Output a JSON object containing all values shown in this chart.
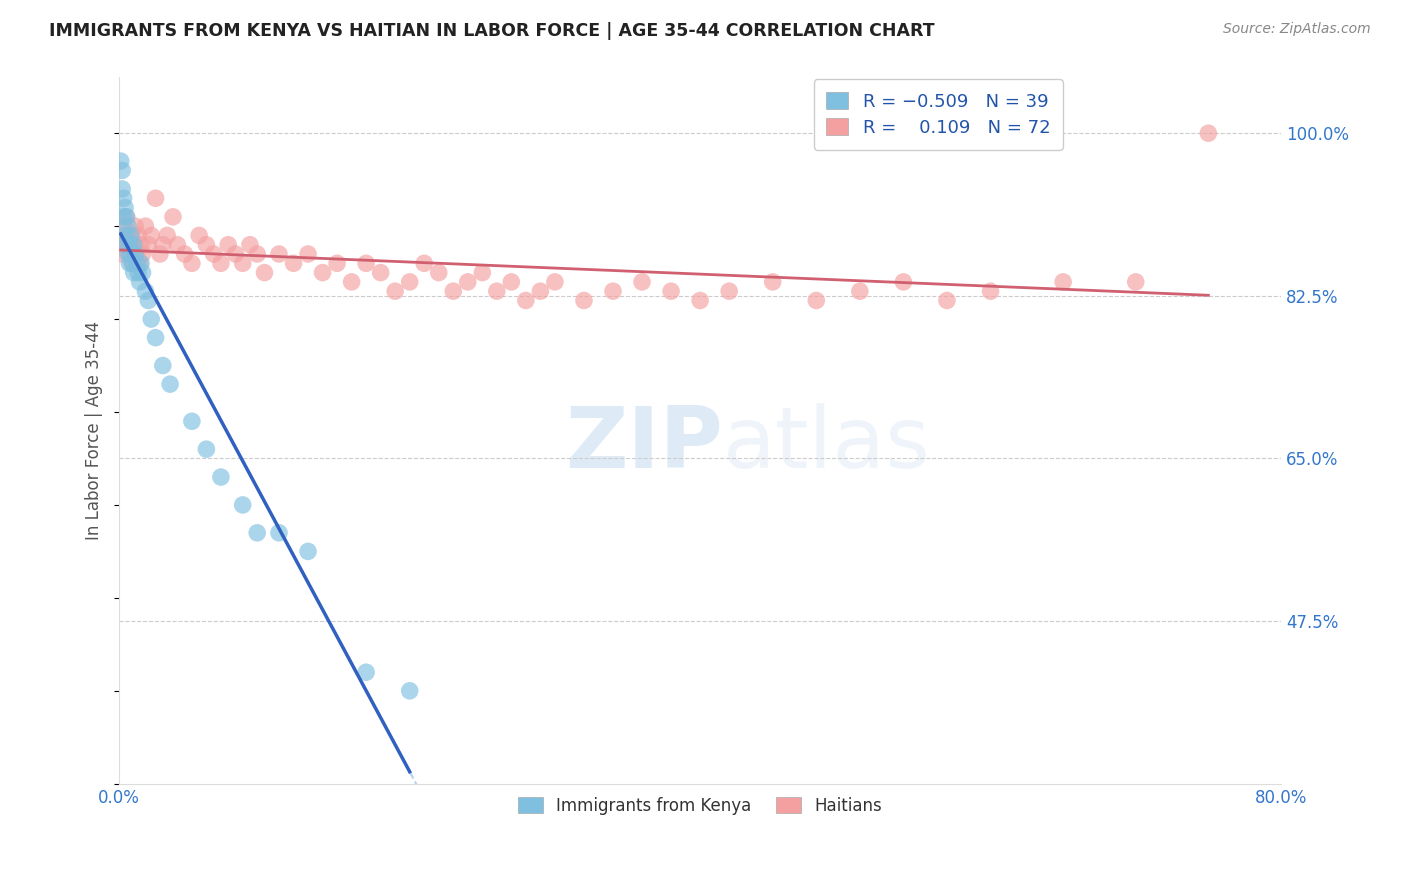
{
  "title": "IMMIGRANTS FROM KENYA VS HAITIAN IN LABOR FORCE | AGE 35-44 CORRELATION CHART",
  "source": "Source: ZipAtlas.com",
  "ylabel": "In Labor Force | Age 35-44",
  "xlim": [
    0.0,
    0.8
  ],
  "ylim": [
    0.3,
    1.06
  ],
  "yticks": [
    0.475,
    0.65,
    0.825,
    1.0
  ],
  "ytick_labels": [
    "47.5%",
    "65.0%",
    "82.5%",
    "100.0%"
  ],
  "xticks": [
    0.0,
    0.1,
    0.2,
    0.3,
    0.4,
    0.5,
    0.6,
    0.7,
    0.8
  ],
  "xtick_labels": [
    "0.0%",
    "",
    "",
    "",
    "",
    "",
    "",
    "",
    "80.0%"
  ],
  "kenya_R": -0.509,
  "kenya_N": 39,
  "haiti_R": 0.109,
  "haiti_N": 72,
  "kenya_color": "#7fbfdf",
  "haiti_color": "#f4a0a0",
  "kenya_line_color": "#3060c0",
  "haiti_line_color": "#d06070",
  "kenya_x": [
    0.001,
    0.002,
    0.002,
    0.003,
    0.003,
    0.004,
    0.004,
    0.005,
    0.005,
    0.006,
    0.006,
    0.007,
    0.007,
    0.008,
    0.008,
    0.009,
    0.01,
    0.01,
    0.011,
    0.012,
    0.013,
    0.014,
    0.015,
    0.016,
    0.018,
    0.02,
    0.022,
    0.025,
    0.03,
    0.035,
    0.05,
    0.06,
    0.07,
    0.085,
    0.095,
    0.11,
    0.13,
    0.17,
    0.2
  ],
  "kenya_y": [
    0.97,
    0.96,
    0.94,
    0.93,
    0.91,
    0.92,
    0.89,
    0.91,
    0.88,
    0.9,
    0.87,
    0.88,
    0.86,
    0.87,
    0.89,
    0.86,
    0.88,
    0.85,
    0.87,
    0.86,
    0.85,
    0.84,
    0.86,
    0.85,
    0.83,
    0.82,
    0.8,
    0.78,
    0.75,
    0.73,
    0.69,
    0.66,
    0.63,
    0.6,
    0.57,
    0.57,
    0.55,
    0.42,
    0.4
  ],
  "haiti_x": [
    0.001,
    0.002,
    0.003,
    0.004,
    0.005,
    0.006,
    0.007,
    0.008,
    0.009,
    0.01,
    0.011,
    0.012,
    0.013,
    0.014,
    0.015,
    0.016,
    0.018,
    0.02,
    0.022,
    0.025,
    0.028,
    0.03,
    0.033,
    0.037,
    0.04,
    0.045,
    0.05,
    0.055,
    0.06,
    0.065,
    0.07,
    0.075,
    0.08,
    0.085,
    0.09,
    0.095,
    0.1,
    0.11,
    0.12,
    0.13,
    0.14,
    0.15,
    0.16,
    0.17,
    0.18,
    0.19,
    0.2,
    0.21,
    0.22,
    0.23,
    0.24,
    0.25,
    0.26,
    0.27,
    0.28,
    0.29,
    0.3,
    0.32,
    0.34,
    0.36,
    0.38,
    0.4,
    0.42,
    0.45,
    0.48,
    0.51,
    0.54,
    0.57,
    0.6,
    0.65,
    0.7,
    0.75
  ],
  "haiti_y": [
    0.88,
    0.87,
    0.9,
    0.89,
    0.91,
    0.88,
    0.87,
    0.89,
    0.86,
    0.88,
    0.9,
    0.87,
    0.89,
    0.86,
    0.88,
    0.87,
    0.9,
    0.88,
    0.89,
    0.93,
    0.87,
    0.88,
    0.89,
    0.91,
    0.88,
    0.87,
    0.86,
    0.89,
    0.88,
    0.87,
    0.86,
    0.88,
    0.87,
    0.86,
    0.88,
    0.87,
    0.85,
    0.87,
    0.86,
    0.87,
    0.85,
    0.86,
    0.84,
    0.86,
    0.85,
    0.83,
    0.84,
    0.86,
    0.85,
    0.83,
    0.84,
    0.85,
    0.83,
    0.84,
    0.82,
    0.83,
    0.84,
    0.82,
    0.83,
    0.84,
    0.83,
    0.82,
    0.83,
    0.84,
    0.82,
    0.83,
    0.84,
    0.82,
    0.83,
    0.84,
    0.84,
    1.0
  ],
  "watermark_zip": "ZIP",
  "watermark_atlas": "atlas",
  "background_color": "#ffffff",
  "grid_color": "#cccccc",
  "dash_line_color": "#aaccee"
}
